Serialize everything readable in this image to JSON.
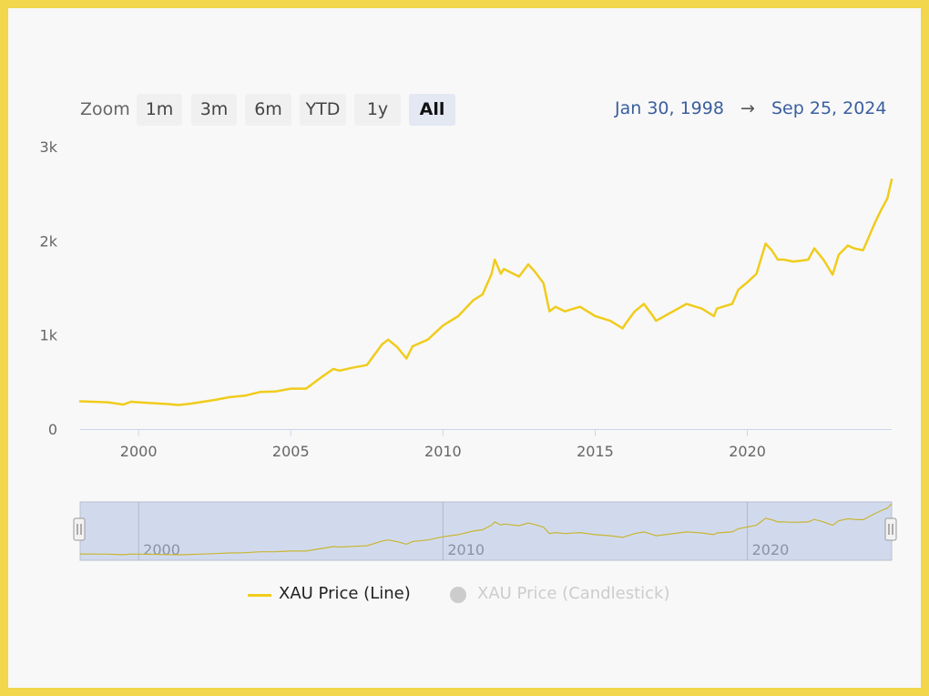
{
  "rangeSelector": {
    "zoom_label": "Zoom",
    "buttons": [
      "1m",
      "3m",
      "6m",
      "YTD",
      "1y",
      "All"
    ],
    "selected": "All",
    "from_date": "Jan 30, 1998",
    "arrow": "→",
    "to_date": "Sep 25, 2024"
  },
  "legend": {
    "line_label": "XAU Price (Line)",
    "candlestick_label": "XAU Price (Candlestick)"
  },
  "colors": {
    "line": "#f0cc1c",
    "navigator_mask": "#ccd6eb",
    "range_text": "#3a5fa0",
    "legend_hidden": "#cccccc"
  },
  "chart_data": {
    "type": "line",
    "title": "",
    "xlabel": "",
    "ylabel": "",
    "xlim": [
      1998.08,
      2024.74
    ],
    "ylim": [
      0,
      3000
    ],
    "x_ticks": [
      2000,
      2005,
      2010,
      2015,
      2020
    ],
    "x_tick_labels": [
      "2000",
      "2005",
      "2010",
      "2015",
      "2020"
    ],
    "y_ticks": [
      0,
      1000,
      2000,
      3000
    ],
    "y_tick_labels": [
      "0",
      "1k",
      "2k",
      "3k"
    ],
    "navigator_tick_labels": [
      "2000",
      "2010",
      "2020"
    ],
    "series": [
      {
        "name": "XAU Price (Line)",
        "x": [
          1998.08,
          1998.5,
          1999.0,
          1999.5,
          1999.75,
          2000.0,
          2000.5,
          2001.0,
          2001.3,
          2001.7,
          2002.0,
          2002.5,
          2003.0,
          2003.5,
          2004.0,
          2004.5,
          2005.0,
          2005.5,
          2006.0,
          2006.4,
          2006.6,
          2007.0,
          2007.5,
          2008.0,
          2008.2,
          2008.5,
          2008.8,
          2009.0,
          2009.5,
          2010.0,
          2010.5,
          2011.0,
          2011.3,
          2011.6,
          2011.7,
          2011.9,
          2012.0,
          2012.5,
          2012.8,
          2013.0,
          2013.3,
          2013.5,
          2013.7,
          2014.0,
          2014.5,
          2015.0,
          2015.5,
          2015.9,
          2016.0,
          2016.3,
          2016.6,
          2016.9,
          2017.0,
          2017.5,
          2018.0,
          2018.5,
          2018.9,
          2019.0,
          2019.5,
          2019.7,
          2020.0,
          2020.3,
          2020.6,
          2020.8,
          2021.0,
          2021.2,
          2021.5,
          2021.8,
          2022.0,
          2022.2,
          2022.5,
          2022.8,
          2023.0,
          2023.3,
          2023.5,
          2023.8,
          2024.0,
          2024.2,
          2024.4,
          2024.6,
          2024.74
        ],
        "values": [
          295,
          290,
          285,
          260,
          290,
          285,
          275,
          265,
          255,
          270,
          285,
          310,
          340,
          355,
          395,
          400,
          430,
          430,
          550,
          640,
          620,
          650,
          680,
          900,
          950,
          870,
          750,
          880,
          950,
          1100,
          1200,
          1370,
          1430,
          1650,
          1800,
          1650,
          1700,
          1620,
          1750,
          1680,
          1550,
          1250,
          1300,
          1250,
          1300,
          1200,
          1150,
          1070,
          1120,
          1250,
          1330,
          1200,
          1150,
          1240,
          1330,
          1280,
          1200,
          1280,
          1330,
          1480,
          1560,
          1650,
          1970,
          1900,
          1800,
          1800,
          1780,
          1790,
          1800,
          1920,
          1800,
          1640,
          1850,
          1950,
          1920,
          1900,
          2050,
          2200,
          2330,
          2450,
          2650
        ]
      }
    ]
  }
}
